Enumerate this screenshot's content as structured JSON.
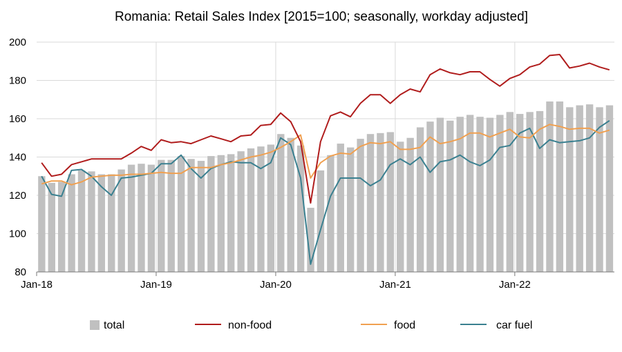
{
  "chart_data": {
    "type": "bar+line",
    "title": "Romania: Retail Sales Index [2015=100; seasonally, workday adjusted]",
    "xlabel": "",
    "ylabel": "",
    "ylim": [
      80,
      200
    ],
    "yticks": [
      80,
      100,
      120,
      140,
      160,
      180,
      200
    ],
    "xtick_labels": [
      "Jan-18",
      "Jan-19",
      "Jan-20",
      "Jan-21",
      "Jan-22"
    ],
    "x_start": "Jan-18",
    "x_end": "Oct-22",
    "grid": true,
    "legend_position": "bottom",
    "series": [
      {
        "name": "total",
        "kind": "bar",
        "color": "#c0c0c0",
        "values": [
          130,
          126.5,
          127,
          131,
          133,
          132.5,
          131,
          131,
          133.5,
          136,
          136.5,
          136,
          138.5,
          138.5,
          140.5,
          139,
          138,
          140.5,
          141,
          141.5,
          143,
          144.5,
          145.5,
          146.5,
          152,
          150,
          146,
          113.5,
          133,
          141,
          147,
          145,
          149.5,
          152,
          152.5,
          153,
          148,
          150,
          155.5,
          158.5,
          160.5,
          159,
          161,
          162,
          161,
          160.5,
          162,
          163.5,
          162.5,
          163.5,
          164,
          169,
          169,
          166,
          167,
          167.5,
          166,
          167
        ]
      },
      {
        "name": "non-food",
        "kind": "line",
        "color": "#b01c1c",
        "values": [
          137,
          130,
          131,
          136,
          137.5,
          139,
          139,
          139,
          139,
          142,
          145.5,
          143.5,
          149,
          147.5,
          148,
          147,
          149,
          151,
          149.5,
          148,
          151,
          151.5,
          156.5,
          157,
          163,
          158.5,
          148,
          116,
          148,
          161.5,
          163.5,
          161,
          168,
          172.5,
          172.5,
          168,
          172.5,
          175.5,
          174,
          183,
          186,
          184,
          183,
          184.5,
          184.5,
          180.5,
          177,
          181,
          183,
          187,
          188.5,
          193,
          193.5,
          186.5,
          187.5,
          189,
          187,
          185.5
        ]
      },
      {
        "name": "food",
        "kind": "line",
        "color": "#f0a050",
        "values": [
          126,
          127.5,
          127.5,
          125.5,
          127,
          129.5,
          130,
          130.5,
          130.5,
          131,
          131,
          131.5,
          132,
          131.5,
          131.5,
          134.5,
          134.5,
          134.5,
          136,
          137,
          138.5,
          140,
          141,
          142.5,
          145,
          148,
          151.5,
          129,
          137,
          140.5,
          142,
          141.5,
          145.5,
          147.5,
          147,
          148,
          144,
          144,
          145,
          150.5,
          147,
          148,
          149.5,
          152.5,
          152.5,
          150.5,
          152.5,
          154.5,
          150.5,
          150,
          154.5,
          157,
          156,
          154.5,
          155,
          155,
          152.5,
          154
        ]
      },
      {
        "name": "car fuel",
        "kind": "line",
        "color": "#3a8090",
        "values": [
          130,
          120.5,
          119.5,
          133,
          133.5,
          130,
          124.5,
          120,
          129,
          129.5,
          130.5,
          131.5,
          136.5,
          136.5,
          141,
          134,
          129,
          134,
          136,
          137.5,
          137,
          137,
          134,
          137,
          150,
          146.5,
          129,
          84,
          102,
          119.5,
          129,
          129,
          129,
          125,
          128,
          136,
          139,
          136,
          140,
          132,
          137.5,
          138.5,
          141,
          137.5,
          135.5,
          138.5,
          145,
          146,
          152.5,
          155,
          144.5,
          149,
          147.5,
          148,
          148.5,
          150,
          155.5,
          159
        ]
      }
    ]
  }
}
